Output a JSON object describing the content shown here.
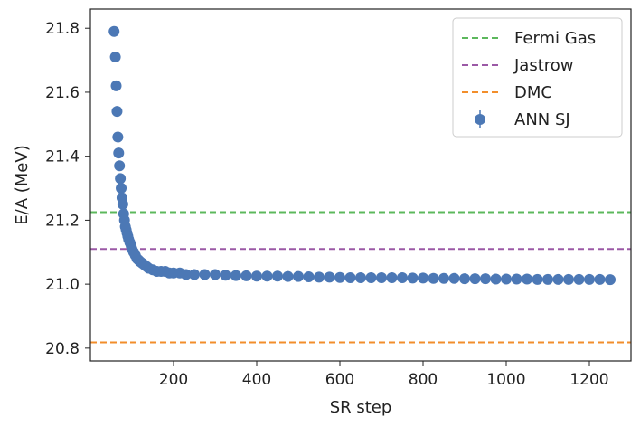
{
  "chart_data": {
    "type": "scatter",
    "title": "",
    "xlabel": "SR step",
    "ylabel": "E/A (MeV)",
    "xlim": [
      0,
      1300
    ],
    "ylim": [
      20.76,
      21.86
    ],
    "xticks": [
      {
        "value": 200,
        "label": "200"
      },
      {
        "value": 400,
        "label": "400"
      },
      {
        "value": 600,
        "label": "600"
      },
      {
        "value": 800,
        "label": "800"
      },
      {
        "value": 1000,
        "label": "1000"
      },
      {
        "value": 1200,
        "label": "1200"
      }
    ],
    "yticks": [
      {
        "value": 20.8,
        "label": "20.8"
      },
      {
        "value": 21.0,
        "label": "21.0"
      },
      {
        "value": 21.2,
        "label": "21.2"
      },
      {
        "value": 21.4,
        "label": "21.4"
      },
      {
        "value": 21.6,
        "label": "21.6"
      },
      {
        "value": 21.8,
        "label": "21.8"
      }
    ],
    "grid": false,
    "legend_position": "top-right",
    "hlines": [
      {
        "name": "Fermi Gas",
        "y": 21.225,
        "color": "#5cb85c"
      },
      {
        "name": "Jastrow",
        "y": 21.11,
        "color": "#9b59a6"
      },
      {
        "name": "DMC",
        "y": 20.818,
        "color": "#f28e2b"
      }
    ],
    "series": [
      {
        "name": "ANN SJ",
        "color": "#4c78b5",
        "x": [
          57,
          60,
          62,
          64,
          66,
          68,
          70,
          72,
          74,
          76,
          78,
          80,
          82,
          84,
          86,
          88,
          90,
          92,
          95,
          98,
          100,
          104,
          108,
          112,
          116,
          120,
          125,
          130,
          135,
          140,
          150,
          160,
          170,
          180,
          190,
          200,
          215,
          230,
          250,
          275,
          300,
          325,
          350,
          375,
          400,
          425,
          450,
          475,
          500,
          525,
          550,
          575,
          600,
          625,
          650,
          675,
          700,
          725,
          750,
          775,
          800,
          825,
          850,
          875,
          900,
          925,
          950,
          975,
          1000,
          1025,
          1050,
          1075,
          1100,
          1125,
          1150,
          1175,
          1200,
          1225,
          1250
        ],
        "y": [
          21.79,
          21.71,
          21.62,
          21.54,
          21.46,
          21.41,
          21.37,
          21.33,
          21.3,
          21.27,
          21.25,
          21.22,
          21.2,
          21.18,
          21.17,
          21.16,
          21.15,
          21.14,
          21.13,
          21.12,
          21.11,
          21.1,
          21.09,
          21.08,
          21.075,
          21.07,
          21.065,
          21.06,
          21.055,
          21.05,
          21.045,
          21.04,
          21.04,
          21.04,
          21.035,
          21.035,
          21.035,
          21.03,
          21.03,
          21.03,
          21.03,
          21.028,
          21.027,
          21.026,
          21.025,
          21.025,
          21.025,
          21.024,
          21.024,
          21.023,
          21.022,
          21.022,
          21.021,
          21.02,
          21.02,
          21.02,
          21.02,
          21.02,
          21.02,
          21.019,
          21.019,
          21.018,
          21.018,
          21.018,
          21.017,
          21.017,
          21.017,
          21.016,
          21.016,
          21.016,
          21.016,
          21.015,
          21.015,
          21.015,
          21.015,
          21.015,
          21.015,
          21.015,
          21.014
        ]
      }
    ]
  }
}
